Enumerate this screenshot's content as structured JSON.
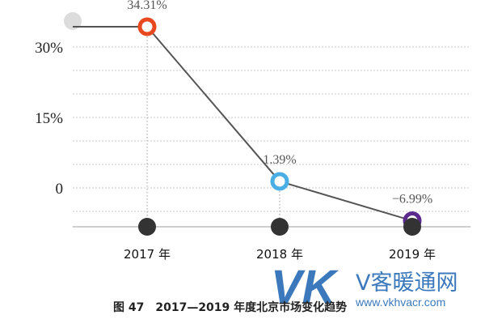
{
  "chart_data": {
    "type": "line",
    "categories": [
      "2017 年",
      "2018 年",
      "2019 年"
    ],
    "series": [
      {
        "values": [
          34.31,
          1.39,
          -6.99
        ],
        "labels": [
          "34.31%",
          "1.39%",
          "−6.99%"
        ],
        "marker_colors": [
          "#e8491f",
          "#4aaee5",
          "#5c2a8e"
        ],
        "line_color": "#555555"
      }
    ],
    "yticks": [
      {
        "value": 30,
        "label": "30%"
      },
      {
        "value": 15,
        "label": "15%"
      },
      {
        "value": 0,
        "label": "0"
      }
    ],
    "ylim": [
      -8,
      39
    ],
    "grid": true,
    "caption": "图 47　2017—2019 年度北京市场变化趋势"
  },
  "watermark": {
    "letters": "VK",
    "text": "V客暖通网",
    "url": "www.vkhvacr.com"
  }
}
